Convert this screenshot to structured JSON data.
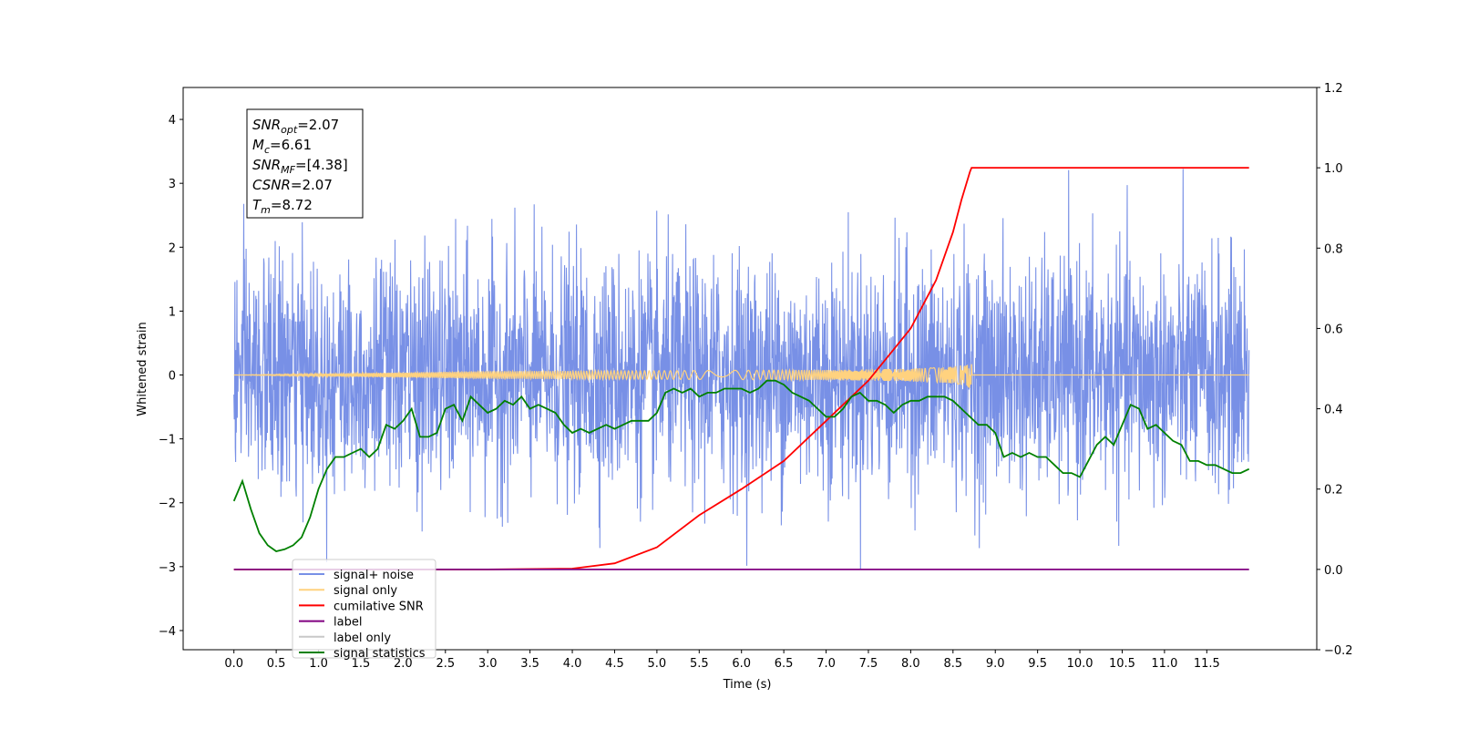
{
  "chart_data": {
    "type": "line",
    "xlabel": "Time (s)",
    "ylabel": "Whitened strain",
    "xlim": [
      -0.6,
      12.8
    ],
    "ylim": [
      -4.3,
      4.5
    ],
    "y2lim": [
      -0.2,
      1.2
    ],
    "xticks": [
      "0.0",
      "0.5",
      "1.0",
      "1.5",
      "2.0",
      "2.5",
      "3.0",
      "3.5",
      "4.0",
      "4.5",
      "5.0",
      "5.5",
      "6.0",
      "6.5",
      "7.0",
      "7.5",
      "8.0",
      "8.5",
      "9.0",
      "9.5",
      "10.0",
      "10.5",
      "11.0",
      "11.5"
    ],
    "yticks": [
      "4",
      "3",
      "2",
      "1",
      "0",
      "−1",
      "−2",
      "−3",
      "−4"
    ],
    "y2ticks": [
      "1.2",
      "1.0",
      "0.8",
      "0.6",
      "0.4",
      "0.2",
      "0.0",
      "−0.2"
    ],
    "grid": false,
    "legend_placement": "lower-left",
    "info_box": [
      {
        "main": "SNR",
        "sub": "opt",
        "rest": "=2.07"
      },
      {
        "main": "M",
        "sub": "c",
        "rest": "=6.61"
      },
      {
        "main": "SNR",
        "sub": "MF",
        "rest": "=[4.38]"
      },
      {
        "main": "CSNR",
        "sub": "",
        "rest": "=2.07"
      },
      {
        "main": "T",
        "sub": "m",
        "rest": "=8.72"
      }
    ],
    "series": [
      {
        "name": "signal+ noise",
        "color": "#7890e6",
        "axis": "left",
        "kind": "noise",
        "x_range": [
          0.0,
          12.0
        ],
        "sigma": 0.9,
        "min": -3.7,
        "max": 4.1
      },
      {
        "name": "signal only",
        "color": "#ffd27f",
        "axis": "left",
        "kind": "chirp",
        "x_range": [
          0.0,
          12.0
        ],
        "merger_time": 8.72,
        "peak_amplitude": 0.25
      },
      {
        "name": "cumilative SNR",
        "color": "#ff0000",
        "axis": "right",
        "x": [
          0.0,
          3.0,
          4.0,
          4.5,
          5.0,
          5.5,
          6.0,
          6.5,
          7.0,
          7.5,
          8.0,
          8.3,
          8.5,
          8.6,
          8.7,
          8.72,
          12.0
        ],
        "y": [
          0.0,
          0.0,
          0.002,
          0.015,
          0.055,
          0.135,
          0.2,
          0.27,
          0.37,
          0.47,
          0.6,
          0.72,
          0.84,
          0.92,
          0.99,
          1.0,
          1.0
        ]
      },
      {
        "name": "label",
        "color": "#800080",
        "axis": "right",
        "x": [
          0.0,
          12.0
        ],
        "y": [
          0.0,
          0.0
        ]
      },
      {
        "name": "signal statistics",
        "color": "#008000",
        "axis": "right",
        "x": [
          0.0,
          0.1,
          0.2,
          0.3,
          0.4,
          0.5,
          0.6,
          0.7,
          0.8,
          0.9,
          1.0,
          1.1,
          1.2,
          1.3,
          1.4,
          1.5,
          1.6,
          1.7,
          1.8,
          1.9,
          2.0,
          2.1,
          2.2,
          2.3,
          2.4,
          2.5,
          2.6,
          2.7,
          2.8,
          2.9,
          3.0,
          3.1,
          3.2,
          3.3,
          3.4,
          3.5,
          3.6,
          3.7,
          3.8,
          3.9,
          4.0,
          4.1,
          4.2,
          4.3,
          4.4,
          4.5,
          4.6,
          4.7,
          4.8,
          4.9,
          5.0,
          5.1,
          5.2,
          5.3,
          5.4,
          5.5,
          5.6,
          5.7,
          5.8,
          5.9,
          6.0,
          6.1,
          6.2,
          6.3,
          6.4,
          6.5,
          6.6,
          6.7,
          6.8,
          6.9,
          7.0,
          7.1,
          7.2,
          7.3,
          7.4,
          7.5,
          7.6,
          7.7,
          7.8,
          7.9,
          8.0,
          8.1,
          8.2,
          8.3,
          8.4,
          8.5,
          8.6,
          8.7,
          8.8,
          8.9,
          9.0,
          9.1,
          9.2,
          9.3,
          9.4,
          9.5,
          9.6,
          9.7,
          9.8,
          9.9,
          10.0,
          10.1,
          10.2,
          10.3,
          10.4,
          10.5,
          10.6,
          10.7,
          10.8,
          10.9,
          11.0,
          11.1,
          11.2,
          11.3,
          11.4,
          11.5,
          11.6,
          11.7,
          11.8,
          11.9,
          12.0
        ],
        "y": [
          0.17,
          0.22,
          0.15,
          0.09,
          0.06,
          0.045,
          0.05,
          0.06,
          0.08,
          0.13,
          0.2,
          0.25,
          0.28,
          0.28,
          0.29,
          0.3,
          0.28,
          0.3,
          0.36,
          0.35,
          0.37,
          0.4,
          0.33,
          0.33,
          0.34,
          0.4,
          0.41,
          0.37,
          0.43,
          0.41,
          0.39,
          0.4,
          0.42,
          0.41,
          0.43,
          0.4,
          0.41,
          0.4,
          0.39,
          0.36,
          0.34,
          0.35,
          0.34,
          0.35,
          0.36,
          0.35,
          0.36,
          0.37,
          0.37,
          0.37,
          0.39,
          0.44,
          0.45,
          0.44,
          0.45,
          0.43,
          0.44,
          0.44,
          0.45,
          0.45,
          0.45,
          0.44,
          0.45,
          0.47,
          0.47,
          0.46,
          0.44,
          0.43,
          0.42,
          0.4,
          0.38,
          0.38,
          0.4,
          0.43,
          0.44,
          0.42,
          0.42,
          0.41,
          0.39,
          0.41,
          0.42,
          0.42,
          0.43,
          0.43,
          0.43,
          0.42,
          0.4,
          0.38,
          0.36,
          0.36,
          0.34,
          0.28,
          0.29,
          0.28,
          0.29,
          0.28,
          0.28,
          0.26,
          0.24,
          0.24,
          0.23,
          0.27,
          0.31,
          0.33,
          0.31,
          0.36,
          0.41,
          0.4,
          0.35,
          0.36,
          0.34,
          0.32,
          0.31,
          0.27,
          0.27,
          0.26,
          0.26,
          0.25,
          0.24,
          0.24,
          0.25
        ]
      }
    ],
    "legend": [
      {
        "label": "signal+ noise",
        "color": "#7890e6"
      },
      {
        "label": "signal only",
        "color": "#ffd27f"
      },
      {
        "label": "cumilative SNR",
        "color": "#ff0000"
      },
      {
        "label": "label",
        "color": "#800080"
      },
      {
        "label": "label only",
        "color": "#c8c8c8"
      },
      {
        "label": "signal statistics",
        "color": "#008000"
      }
    ]
  }
}
